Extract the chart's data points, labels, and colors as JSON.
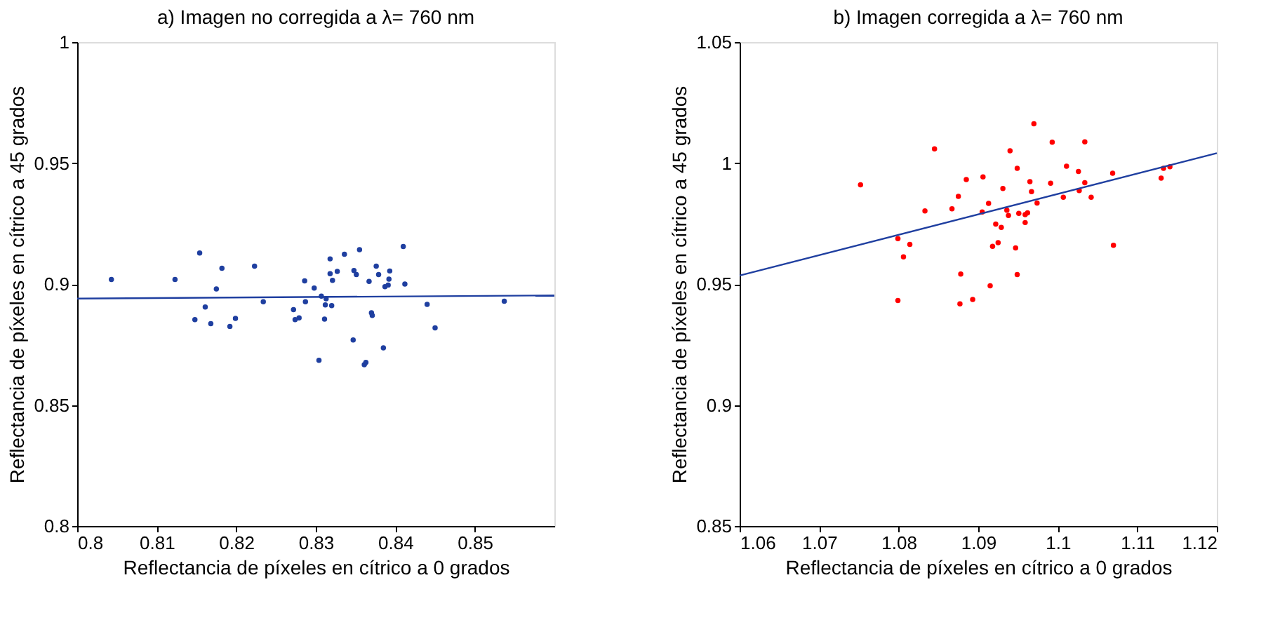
{
  "chart_data": [
    {
      "type": "scatter",
      "title": "a) Imagen no corregida a λ= 760 nm",
      "xlabel": "Reflectancia de píxeles en cítrico a 0 grados",
      "ylabel": "Reflectancia de píxeles en cítrico a 45 grados",
      "xlim": [
        0.8,
        0.86
      ],
      "ylim": [
        0.8,
        1
      ],
      "xticks": [
        0.8,
        0.81,
        0.82,
        0.83,
        0.84,
        0.85
      ],
      "yticks": [
        0.8,
        0.85,
        0.9,
        0.95,
        1
      ],
      "grid": false,
      "marker": "circle",
      "series": [
        {
          "color": "#1f3fa0",
          "x": [
            0.8043,
            0.8123,
            0.8154,
            0.8148,
            0.8161,
            0.8168,
            0.8175,
            0.8182,
            0.8192,
            0.8199,
            0.8223,
            0.8234,
            0.8272,
            0.8274,
            0.8279,
            0.8286,
            0.8287,
            0.8298,
            0.8304,
            0.8307,
            0.8311,
            0.8312,
            0.8313,
            0.8318,
            0.8318,
            0.832,
            0.8321,
            0.8327,
            0.8336,
            0.8347,
            0.8348,
            0.8351,
            0.8355,
            0.8361,
            0.8363,
            0.8367,
            0.837,
            0.8371,
            0.8376,
            0.8379,
            0.8385,
            0.8387,
            0.8391,
            0.8392,
            0.8393,
            0.841,
            0.8412,
            0.844,
            0.845,
            0.8537
          ],
          "values": [
            0.9019,
            0.9019,
            0.9128,
            0.8853,
            0.8905,
            0.8836,
            0.898,
            0.9065,
            0.8825,
            0.8858,
            0.9074,
            0.8927,
            0.8894,
            0.8853,
            0.886,
            0.9013,
            0.8927,
            0.8983,
            0.8685,
            0.895,
            0.8855,
            0.8914,
            0.8939,
            0.9043,
            0.9104,
            0.8911,
            0.9015,
            0.9052,
            0.9123,
            0.8769,
            0.9056,
            0.9039,
            0.9142,
            0.8667,
            0.8676,
            0.9011,
            0.8881,
            0.887,
            0.9074,
            0.9039,
            0.8736,
            0.8989,
            0.8996,
            0.902,
            0.9054,
            0.9155,
            0.9,
            0.8916,
            0.8819,
            0.8929
          ]
        },
        {
          "type": "line",
          "marker": "none",
          "line_style": "solid",
          "color": "#1f3fa0",
          "x": [
            0.8,
            0.86
          ],
          "values": [
            0.894,
            0.8953
          ]
        }
      ]
    },
    {
      "type": "scatter",
      "title": "b) Imagen corregida a  λ= 760 nm",
      "xlabel": "Reflectancia de píxeles en cítrico a 0 grados",
      "ylabel": "Reflectancia de píxeles en cítrico a 45 grados",
      "xlim": [
        1.06,
        1.12
      ],
      "ylim": [
        0.85,
        1.05
      ],
      "xticks": [
        1.06,
        1.07,
        1.08,
        1.09,
        1.1,
        1.11,
        1.12
      ],
      "yticks": [
        0.85,
        0.9,
        0.95,
        1,
        1.05
      ],
      "grid": false,
      "marker": "circle",
      "series": [
        {
          "color": "#ff0000",
          "x": [
            1.097,
            1.0993,
            1.1034,
            1.0845,
            1.094,
            1.0752,
            1.0949,
            1.1011,
            1.1026,
            1.1069,
            1.1133,
            1.1141,
            1.113,
            1.0885,
            1.0906,
            1.0965,
            1.0991,
            1.1034,
            1.0931,
            1.0967,
            1.0875,
            1.0913,
            1.0974,
            1.1007,
            1.1027,
            1.1042,
            1.0833,
            1.0867,
            1.0905,
            1.0936,
            1.0938,
            1.0951,
            1.0959,
            1.0962,
            1.0922,
            1.0929,
            1.0959,
            1.0799,
            1.0814,
            1.0925,
            1.0918,
            1.0947,
            1.107,
            1.0806,
            1.0878,
            1.0949,
            1.0915,
            1.0799,
            1.0893,
            1.0877
          ],
          "values": [
            1.0162,
            1.0086,
            1.0088,
            1.0059,
            1.0051,
            0.991,
            0.9978,
            0.9987,
            0.9965,
            0.9958,
            0.9978,
            0.9985,
            0.9938,
            0.9932,
            0.9943,
            0.9923,
            0.9917,
            0.9919,
            0.9895,
            0.9882,
            0.9862,
            0.9833,
            0.9835,
            0.9859,
            0.9886,
            0.9859,
            0.9802,
            0.9811,
            0.9798,
            0.9805,
            0.9783,
            0.9792,
            0.9787,
            0.9794,
            0.9748,
            0.9734,
            0.9754,
            0.9688,
            0.9664,
            0.9671,
            0.9656,
            0.9649,
            0.966,
            0.9612,
            0.9541,
            0.9539,
            0.9493,
            0.9432,
            0.9436,
            0.9418
          ]
        },
        {
          "type": "line",
          "marker": "none",
          "line_style": "solid",
          "color": "#1f3fa0",
          "x": [
            1.06,
            1.12
          ],
          "values": [
            0.9535,
            1.0041
          ]
        }
      ]
    }
  ]
}
